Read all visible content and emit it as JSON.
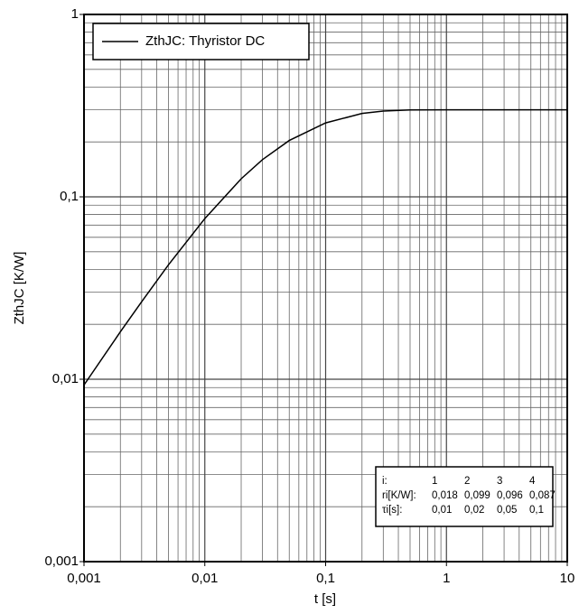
{
  "chart_data": {
    "type": "line",
    "x_label": "t [s]",
    "y_label": "ZthJC [K/W]",
    "x": [
      0.001,
      0.002,
      0.003,
      0.005,
      0.01,
      0.02,
      0.03,
      0.05,
      0.1,
      0.2,
      0.3,
      0.5,
      1,
      2,
      5,
      10
    ],
    "series": [
      {
        "name": "ZthJC: Thyristor DC",
        "color": "#000000",
        "values": [
          0.0093,
          0.0182,
          0.0266,
          0.0424,
          0.076,
          0.1256,
          0.1599,
          0.2037,
          0.2543,
          0.2865,
          0.2954,
          0.2994,
          0.3,
          0.3,
          0.3,
          0.3
        ]
      }
    ],
    "xlim": [
      0.001,
      10
    ],
    "ylim": [
      0.001,
      1
    ],
    "xticks": [
      {
        "value": 0.001,
        "label": "0,001"
      },
      {
        "value": 0.01,
        "label": "0,01"
      },
      {
        "value": 0.1,
        "label": "0,1"
      },
      1,
      10
    ],
    "yticks": [
      {
        "value": 0.001,
        "label": "0,001"
      },
      {
        "value": 0.01,
        "label": "0,01"
      },
      {
        "value": 0.1,
        "label": "0,1"
      },
      1
    ],
    "log_x": true,
    "log_y": true,
    "grid": true,
    "legend": "top-left",
    "table": {
      "rows": [
        [
          "i:",
          "1",
          "2",
          "3",
          "4"
        ],
        [
          "ri[K/W]:",
          "0,018",
          "0,099",
          "0,096",
          "0,087"
        ],
        [
          "τi[s]:",
          "0,01",
          "0,02",
          "0,05",
          "0,1"
        ]
      ]
    }
  }
}
